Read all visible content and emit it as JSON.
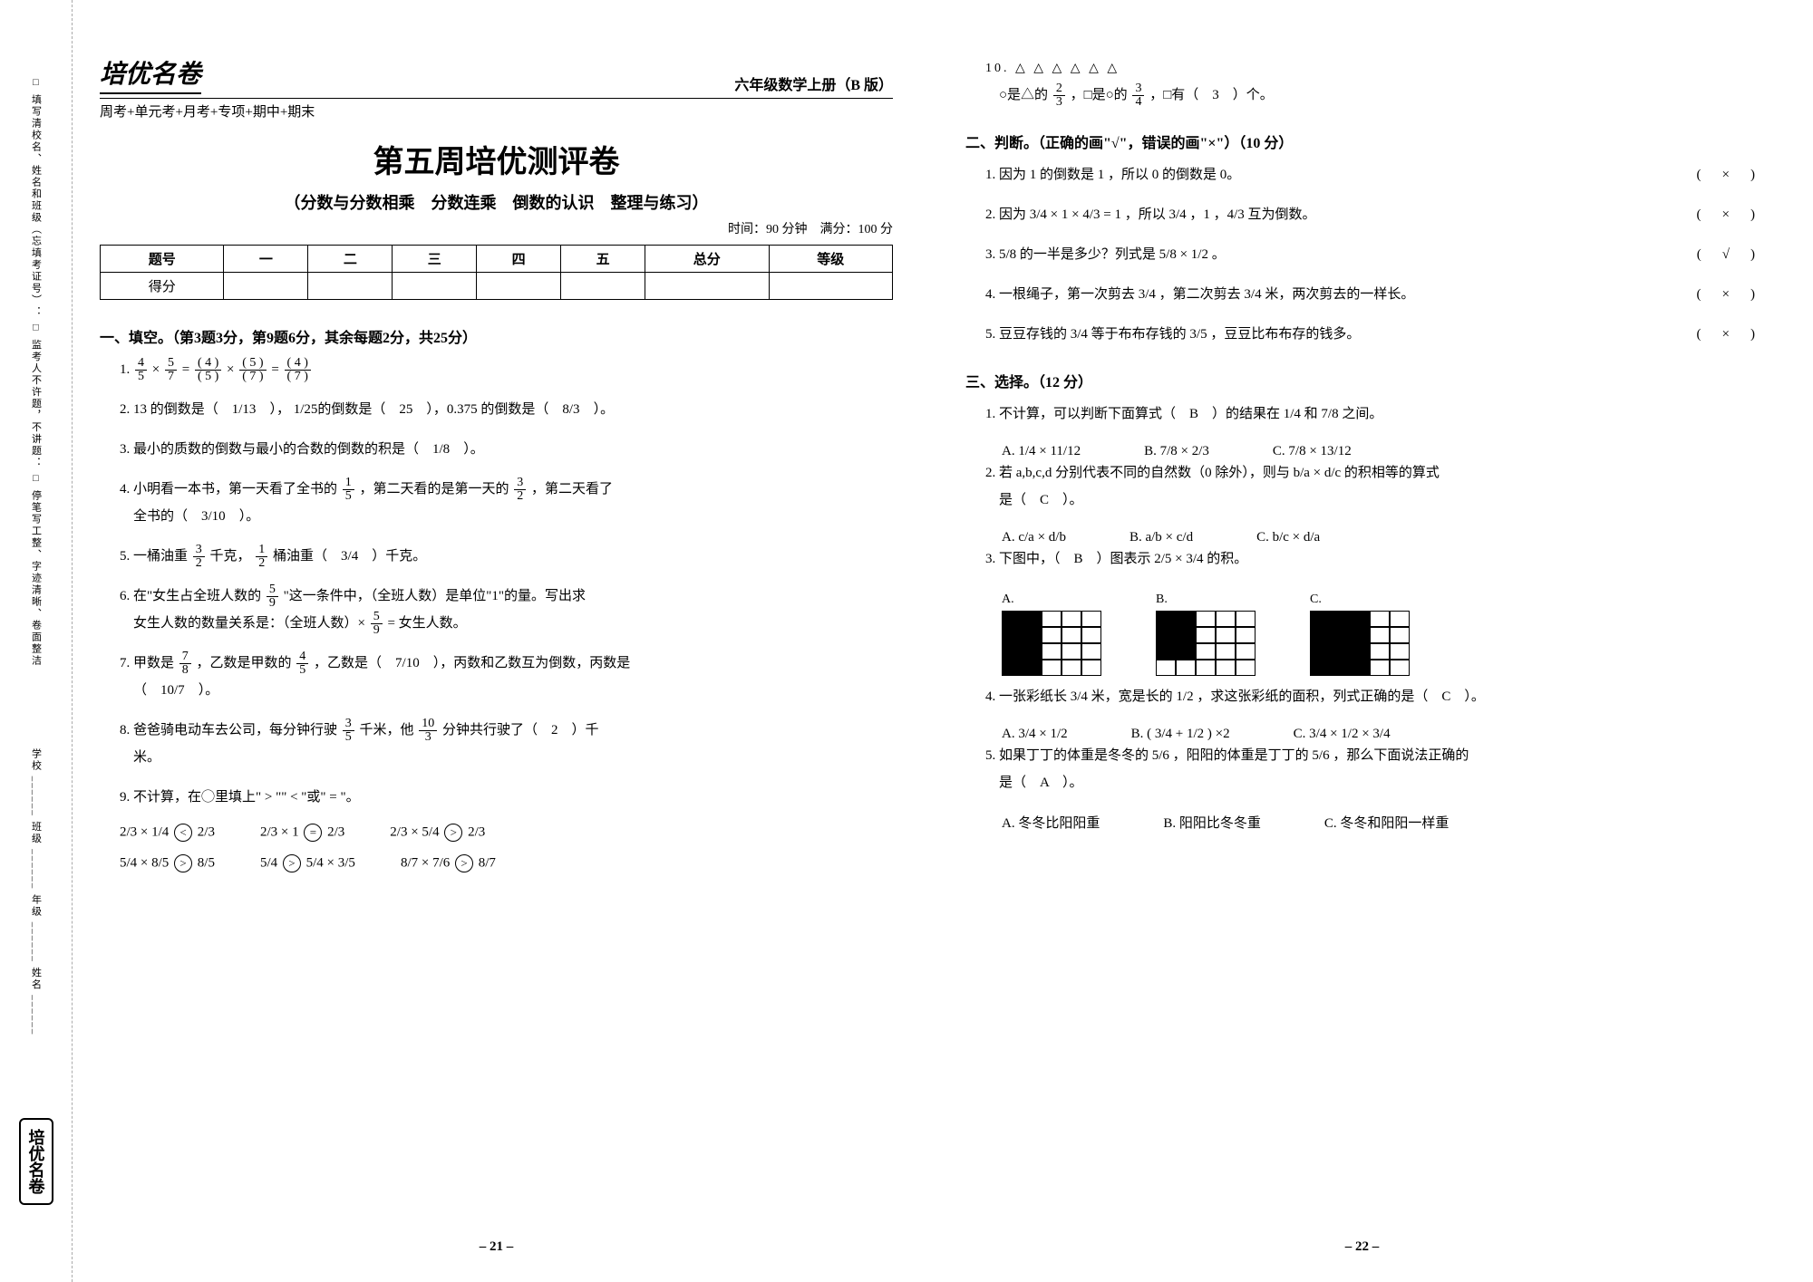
{
  "margin": {
    "rules": "□ 填写清校名、姓名和班级（忘填考证号）：\n□ 监考人不许题，不讲题：\n□ 停笔写工整、字迹清晰、卷面整洁",
    "fields": "学校 ______  班级 ______  年级 ______  姓名 ______",
    "logo": "培优名卷",
    "logo_sub": "周考+单元考+月考+专项+期中+期末"
  },
  "header": {
    "brand": "培优名卷",
    "grade": "六年级数学上册（B 版）",
    "subhead": "周考+单元考+月考+专项+期中+期末",
    "title": "第五周培优测评卷",
    "subtitle": "（分数与分数相乘　分数连乘　倒数的认识　整理与练习）",
    "timing": "时间：90 分钟　满分：100 分"
  },
  "score_table": {
    "head": [
      "题号",
      "一",
      "二",
      "三",
      "四",
      "五",
      "总分",
      "等级"
    ],
    "row_label": "得分"
  },
  "sectionA": {
    "head": "一、填空。（第3题3分，第9题6分，其余每题2分，共25分）",
    "q1_pre": "1. ",
    "q1_a": "4",
    "q1_b": "5",
    "q1_c": "5",
    "q1_d": "7",
    "q1_mid": " = ",
    "q1_n1": "( 4 )",
    "q1_n2": "( 5 )",
    "q1_n3": "( 5 )",
    "q1_n4": "( 7 )",
    "q1_r1": "( 4 )",
    "q1_r2": "( 7 )",
    "q2": "2. 13 的倒数是（　",
    "q2a": "1/13",
    "q2b": "　），",
    "q2c": "1/25",
    "q2d": "的倒数是（　25　），0.375 的倒数是（　",
    "q2e": "8/3",
    "q2f": "　）。",
    "q3": "3. 最小的质数的倒数与最小的合数的倒数的积是（　",
    "q3a": "1/8",
    "q3b": "　）。",
    "q4a": "4. 小明看一本书，第一天看了全书的",
    "q4b": "，第二天看的是第一天的",
    "q4c": "，第二天看了",
    "q4d": "全书的（　",
    "q4e": "3/10",
    "q4f": "　）。",
    "q4_f1t": "1",
    "q4_f1b": "5",
    "q4_f2t": "3",
    "q4_f2b": "2",
    "q5a": "5. 一桶油重",
    "q5b": "千克，",
    "q5c": "桶油重（　",
    "q5d": "3/4",
    "q5e": "　）千克。",
    "q5_f1t": "3",
    "q5_f1b": "2",
    "q5_f2t": "1",
    "q5_f2b": "2",
    "q6a": "6. 在\"女生占全班人数的",
    "q6b": "\"这一条件中，（全班人数）是单位\"1\"的量。写出求",
    "q6c": "女生人数的数量关系是：（全班人数）×",
    "q6d": " = 女生人数。",
    "q6_ft": "5",
    "q6_fb": "9",
    "q7a": "7. 甲数是",
    "q7b": "，乙数是甲数的",
    "q7c": "，乙数是（　",
    "q7d": "7/10",
    "q7e": "　），丙数和乙数互为倒数，丙数是",
    "q7f": "（　",
    "q7g": "10/7",
    "q7h": "　）。",
    "q7_f1t": "7",
    "q7_f1b": "8",
    "q7_f2t": "4",
    "q7_f2b": "5",
    "q8a": "8. 爸爸骑电动车去公司，每分钟行驶",
    "q8b": "千米，他",
    "q8c": "分钟共行驶了（　2　）千",
    "q8d": "米。",
    "q8_f1t": "3",
    "q8_f1b": "5",
    "q8_f2t": "10",
    "q8_f2b": "3",
    "q9": "9. 不计算，在◯里填上\" > \"\" < \"或\" = \"。",
    "cmp": [
      {
        "l": "2/3 × 1/4",
        "op": "<",
        "r": "2/3"
      },
      {
        "l": "2/3 × 1",
        "op": "=",
        "r": "2/3"
      },
      {
        "l": "2/3 × 5/4",
        "op": ">",
        "r": "2/3"
      },
      {
        "l": "5/4 × 8/5",
        "op": ">",
        "r": "8/5"
      },
      {
        "l": "5/4",
        "op": ">",
        "r": "5/4 × 3/5"
      },
      {
        "l": "8/7 × 7/6",
        "op": ">",
        "r": "8/7"
      }
    ]
  },
  "q10": {
    "tri": "10. △ △ △ △ △ △",
    "line": "○是△的",
    "f1t": "2",
    "f1b": "3",
    "mid": "，□是○的",
    "f2t": "3",
    "f2b": "4",
    "end": "，□有（　3　）个。"
  },
  "sectionB": {
    "head": "二、判断。（正确的画\"√\"，错误的画\"×\"）（10 分）",
    "items": [
      {
        "text": "1. 因为 1 的倒数是 1 ，所以 0 的倒数是 0。",
        "ans": "×"
      },
      {
        "text": "2. 因为 3/4 × 1 × 4/3 = 1 ，所以 3/4 ，1 ，4/3 互为倒数。",
        "ans": "×"
      },
      {
        "text": "3. 5/8 的一半是多少？列式是 5/8 × 1/2 。",
        "ans": "√"
      },
      {
        "text": "4. 一根绳子，第一次剪去 3/4 ，第二次剪去 3/4 米，两次剪去的一样长。",
        "ans": "×"
      },
      {
        "text": "5. 豆豆存钱的 3/4 等于布布存钱的 3/5 ，豆豆比布布存的钱多。",
        "ans": "×"
      }
    ]
  },
  "sectionC": {
    "head": "三、选择。（12 分）",
    "q1": {
      "text": "1. 不计算，可以判断下面算式（　B　）的结果在 1/4 和 7/8 之间。",
      "opts": [
        "A. 1/4 × 11/12",
        "B. 7/8 × 2/3",
        "C. 7/8 × 13/12"
      ]
    },
    "q2": {
      "text": "2. 若 a,b,c,d 分别代表不同的自然数（0 除外），则与 b/a × d/c 的积相等的算式",
      "text2": "是（　C　）。",
      "opts": [
        "A. c/a × d/b",
        "B. a/b × c/d",
        "C. b/c × d/a"
      ]
    },
    "q3": {
      "text": "3. 下图中，（　B　）图表示 2/5 × 3/4 的积。",
      "diagA": [
        1,
        1,
        0,
        0,
        0,
        1,
        1,
        0,
        0,
        0,
        1,
        1,
        0,
        0,
        0,
        1,
        1,
        0,
        0,
        0
      ],
      "diagB": [
        1,
        1,
        0,
        0,
        0,
        1,
        1,
        0,
        0,
        0,
        1,
        1,
        0,
        0,
        0,
        0,
        0,
        0,
        0,
        0
      ],
      "diagC": [
        1,
        1,
        1,
        0,
        0,
        1,
        1,
        1,
        0,
        0,
        1,
        1,
        1,
        0,
        0,
        1,
        1,
        1,
        0,
        0
      ]
    },
    "q4": {
      "text": "4. 一张彩纸长 3/4 米，宽是长的 1/2 ，求这张彩纸的面积，列式正确的是（　C　）。",
      "opts": [
        "A. 3/4 × 1/2",
        "B. ( 3/4 + 1/2 ) ×2",
        "C. 3/4 × 1/2 × 3/4"
      ]
    },
    "q5": {
      "text": "5. 如果丁丁的体重是冬冬的 5/6 ，阳阳的体重是丁丁的 5/6 ，那么下面说法正确的",
      "text2": "是（　A　）。",
      "opts": [
        "A. 冬冬比阳阳重",
        "B. 阳阳比冬冬重",
        "C. 冬冬和阳阳一样重"
      ]
    }
  },
  "pagenums": {
    "left": "– 21 –",
    "right": "– 22 –"
  }
}
